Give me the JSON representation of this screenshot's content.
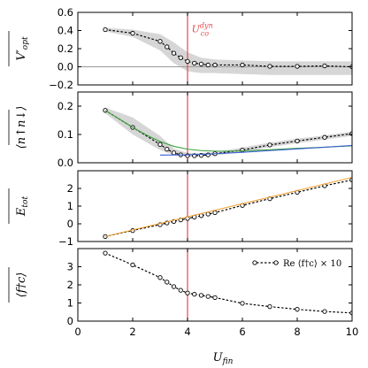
{
  "chart_data": {
    "type": "line",
    "xlabel": "U_fin",
    "xlabel_main": "U",
    "xlabel_sub": "fin",
    "x_ticks": [
      0,
      2,
      4,
      6,
      8,
      10
    ],
    "x_tick_labels": [
      "0",
      "2",
      "4",
      "6",
      "8",
      "10"
    ],
    "xlim": [
      0,
      10
    ],
    "vline": {
      "x": 4.0,
      "color": "#e8474d"
    },
    "panels": [
      {
        "ylabel": "V'_opt",
        "ylabel_main": "V′",
        "ylabel_sub": "opt",
        "ylim": [
          -0.2,
          0.6
        ],
        "y_ticks": [
          -0.2,
          0.0,
          0.2,
          0.4,
          0.6
        ],
        "y_tick_labels": [
          "−0.2",
          "0.0",
          "0.2",
          "0.4",
          "0.6"
        ],
        "zero_line": true,
        "annotation": {
          "label": "U",
          "sup": "dyn",
          "sub": "co",
          "x": 4.15,
          "y": 0.38,
          "color": "#e8474d"
        },
        "series": [
          {
            "style": "dotted-markers",
            "x": [
              1.0,
              2.0,
              3.0,
              3.25,
              3.5,
              3.75,
              4.0,
              4.25,
              4.5,
              4.75,
              5.0,
              6.0,
              7.0,
              8.0,
              9.0,
              10.0
            ],
            "y": [
              0.41,
              0.37,
              0.28,
              0.22,
              0.15,
              0.1,
              0.06,
              0.04,
              0.03,
              0.02,
              0.02,
              0.02,
              0.005,
              0.005,
              0.01,
              0.0
            ]
          }
        ],
        "band": {
          "x": [
            1.0,
            2.0,
            3.0,
            3.5,
            4.0,
            4.5,
            5.0,
            6.0,
            7.0,
            8.0,
            9.0,
            10.0
          ],
          "upper": [
            0.43,
            0.41,
            0.36,
            0.27,
            0.16,
            0.1,
            0.08,
            0.07,
            0.06,
            0.06,
            0.06,
            0.06
          ],
          "lower": [
            0.39,
            0.33,
            0.18,
            0.04,
            -0.05,
            -0.07,
            -0.07,
            -0.08,
            -0.09,
            -0.09,
            -0.09,
            -0.09
          ]
        }
      },
      {
        "ylabel": "<n_up n_down>",
        "ylabel_text": "⟨n↑n↓⟩",
        "ylim": [
          0.0,
          0.25
        ],
        "y_ticks": [
          0.0,
          0.1,
          0.2
        ],
        "y_tick_labels": [
          "0.0",
          "0.1",
          "0.2"
        ],
        "series": [
          {
            "style": "dotted-markers",
            "x": [
              1.0,
              2.0,
              3.0,
              3.25,
              3.5,
              3.75,
              4.0,
              4.25,
              4.5,
              4.75,
              5.0,
              6.0,
              7.0,
              8.0,
              9.0,
              10.0
            ],
            "y": [
              0.185,
              0.125,
              0.065,
              0.048,
              0.035,
              0.028,
              0.025,
              0.025,
              0.026,
              0.028,
              0.032,
              0.045,
              0.063,
              0.077,
              0.09,
              0.103
            ]
          },
          {
            "style": "line",
            "color": "#3aa13a",
            "x": [
              1.0,
              1.5,
              2.0,
              2.5,
              3.0,
              3.5,
              4.0,
              4.5,
              5.0,
              5.5,
              6.0,
              7.0,
              8.0,
              9.0,
              10.0
            ],
            "y": [
              0.185,
              0.155,
              0.125,
              0.098,
              0.075,
              0.058,
              0.048,
              0.043,
              0.041,
              0.041,
              0.042,
              0.046,
              0.051,
              0.055,
              0.06
            ]
          },
          {
            "style": "line",
            "color": "#3b5fd4",
            "x": [
              3.0,
              4.0,
              5.0,
              6.0,
              7.0,
              8.0,
              9.0,
              10.0
            ],
            "y": [
              0.027,
              0.028,
              0.032,
              0.037,
              0.043,
              0.049,
              0.055,
              0.061
            ]
          }
        ],
        "band": {
          "x": [
            1.0,
            2.0,
            3.0,
            3.5,
            4.0,
            4.5,
            5.0,
            6.0,
            7.0,
            8.0,
            9.0,
            10.0
          ],
          "upper": [
            0.195,
            0.16,
            0.095,
            0.05,
            0.035,
            0.034,
            0.038,
            0.054,
            0.071,
            0.085,
            0.097,
            0.11
          ],
          "lower": [
            0.175,
            0.1,
            0.045,
            0.027,
            0.022,
            0.022,
            0.026,
            0.037,
            0.055,
            0.069,
            0.082,
            0.095
          ]
        }
      },
      {
        "ylabel": "E_tot",
        "ylabel_main": "E",
        "ylabel_sub": "tot",
        "ylim": [
          -1.0,
          3.0
        ],
        "y_ticks": [
          -1,
          0,
          1,
          2
        ],
        "y_tick_labels": [
          "−1",
          "0",
          "1",
          "2"
        ],
        "series": [
          {
            "style": "dotted-markers",
            "x": [
              1.0,
              2.0,
              3.0,
              3.25,
              3.5,
              3.75,
              4.0,
              4.25,
              4.5,
              4.75,
              5.0,
              6.0,
              7.0,
              8.0,
              9.0,
              10.0
            ],
            "y": [
              -0.72,
              -0.38,
              -0.05,
              0.05,
              0.13,
              0.22,
              0.3,
              0.38,
              0.46,
              0.55,
              0.63,
              1.04,
              1.42,
              1.78,
              2.15,
              2.48
            ]
          },
          {
            "style": "line",
            "color": "#f0a43a",
            "x": [
              1.0,
              10.0
            ],
            "y": [
              -0.72,
              2.62
            ]
          }
        ]
      },
      {
        "ylabel": "<f^dagger c>",
        "ylabel_text": "⟨f†c⟩",
        "ylim": [
          0.0,
          4.0
        ],
        "y_ticks": [
          0,
          1,
          2,
          3
        ],
        "y_tick_labels": [
          "0",
          "1",
          "2",
          "3"
        ],
        "legend": {
          "label": "Re ⟨f†c⟩ × 10",
          "position": "top-right"
        },
        "series": [
          {
            "style": "dotted-markers",
            "x": [
              1.0,
              2.0,
              3.0,
              3.25,
              3.5,
              3.75,
              4.0,
              4.25,
              4.5,
              4.75,
              5.0,
              6.0,
              7.0,
              8.0,
              9.0,
              10.0
            ],
            "y": [
              3.75,
              3.1,
              2.4,
              2.15,
              1.9,
              1.7,
              1.55,
              1.48,
              1.42,
              1.36,
              1.3,
              0.98,
              0.8,
              0.65,
              0.53,
              0.45
            ]
          }
        ]
      }
    ]
  }
}
